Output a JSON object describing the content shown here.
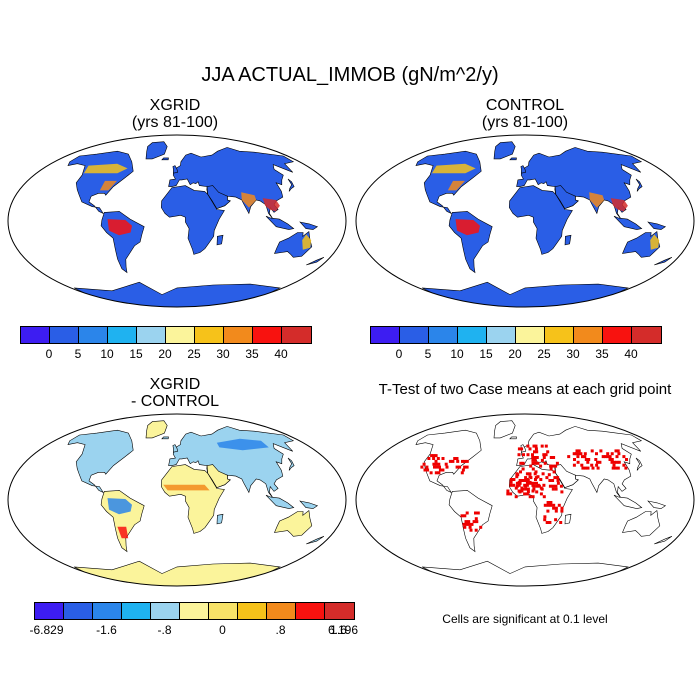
{
  "title": "JJA ACTUAL_IMMOB (gN/m^2/y)",
  "panels": [
    {
      "title_line1": "XGRID",
      "title_line2": "(yrs 81-100)"
    },
    {
      "title_line1": "CONTROL",
      "title_line2": "(yrs 81-100)"
    },
    {
      "title_line1": "XGRID",
      "title_line2": "- CONTROL"
    },
    {
      "title_line1": "T-Test of two Case means at each grid point"
    }
  ],
  "significance_note": "Cells are significant at 0.1 level",
  "colorbar_main": {
    "colors": [
      "#3d1df2",
      "#2a5ee6",
      "#2b85ea",
      "#1fb2f0",
      "#9bd3ef",
      "#fbf49b",
      "#f6c21a",
      "#f28a1c",
      "#f8120f",
      "#d42c2a"
    ],
    "labels": [
      "0",
      "5",
      "10",
      "15",
      "20",
      "25",
      "30",
      "35",
      "40"
    ]
  },
  "colorbar_diff": {
    "colors": [
      "#3d1df2",
      "#2a5ee6",
      "#2b85ea",
      "#1fb2f0",
      "#9bd3ef",
      "#fbf49b",
      "#f7e268",
      "#f6c21a",
      "#f28a1c",
      "#f8120f",
      "#d42c2a"
    ],
    "labels": [
      "-6.829",
      "-1.6",
      "-.8",
      "0",
      ".8",
      "1.6",
      "6.196"
    ]
  },
  "map_data": {
    "projection": "robinson",
    "variable": "ACTUAL_IMMOB",
    "season": "JJA",
    "ocean_color": "#ffffff",
    "land_palette_main": {
      "antarctica": "#2a5ee6",
      "greenland": "#2a5ee6",
      "north_america": "#2a5ee6",
      "south_america": "#2a5ee6",
      "africa": "#2a5ee6",
      "eurasia": "#2a5ee6",
      "australia": "#2a5ee6",
      "amazon": "#f8120f",
      "boreal_belt": "#f6c21a",
      "se_asia": "#d42c2a",
      "south_asia": "#f28a1c",
      "east_us": "#f28a1c",
      "australia_east": "#f6c21a"
    },
    "land_palette_diff": {
      "antarctica": "#fbf49b",
      "greenland": "#fbf49b",
      "north_america": "#9bd3ef",
      "south_america": "#fbf49b",
      "africa": "#fbf49b",
      "eurasia": "#9bd3ef",
      "australia": "#fbf49b",
      "amazon": "#2b85ea",
      "sahel": "#f28a1c",
      "siberia": "#2b85ea",
      "argentina": "#f8120f"
    },
    "significance_color": "#ee0000"
  }
}
